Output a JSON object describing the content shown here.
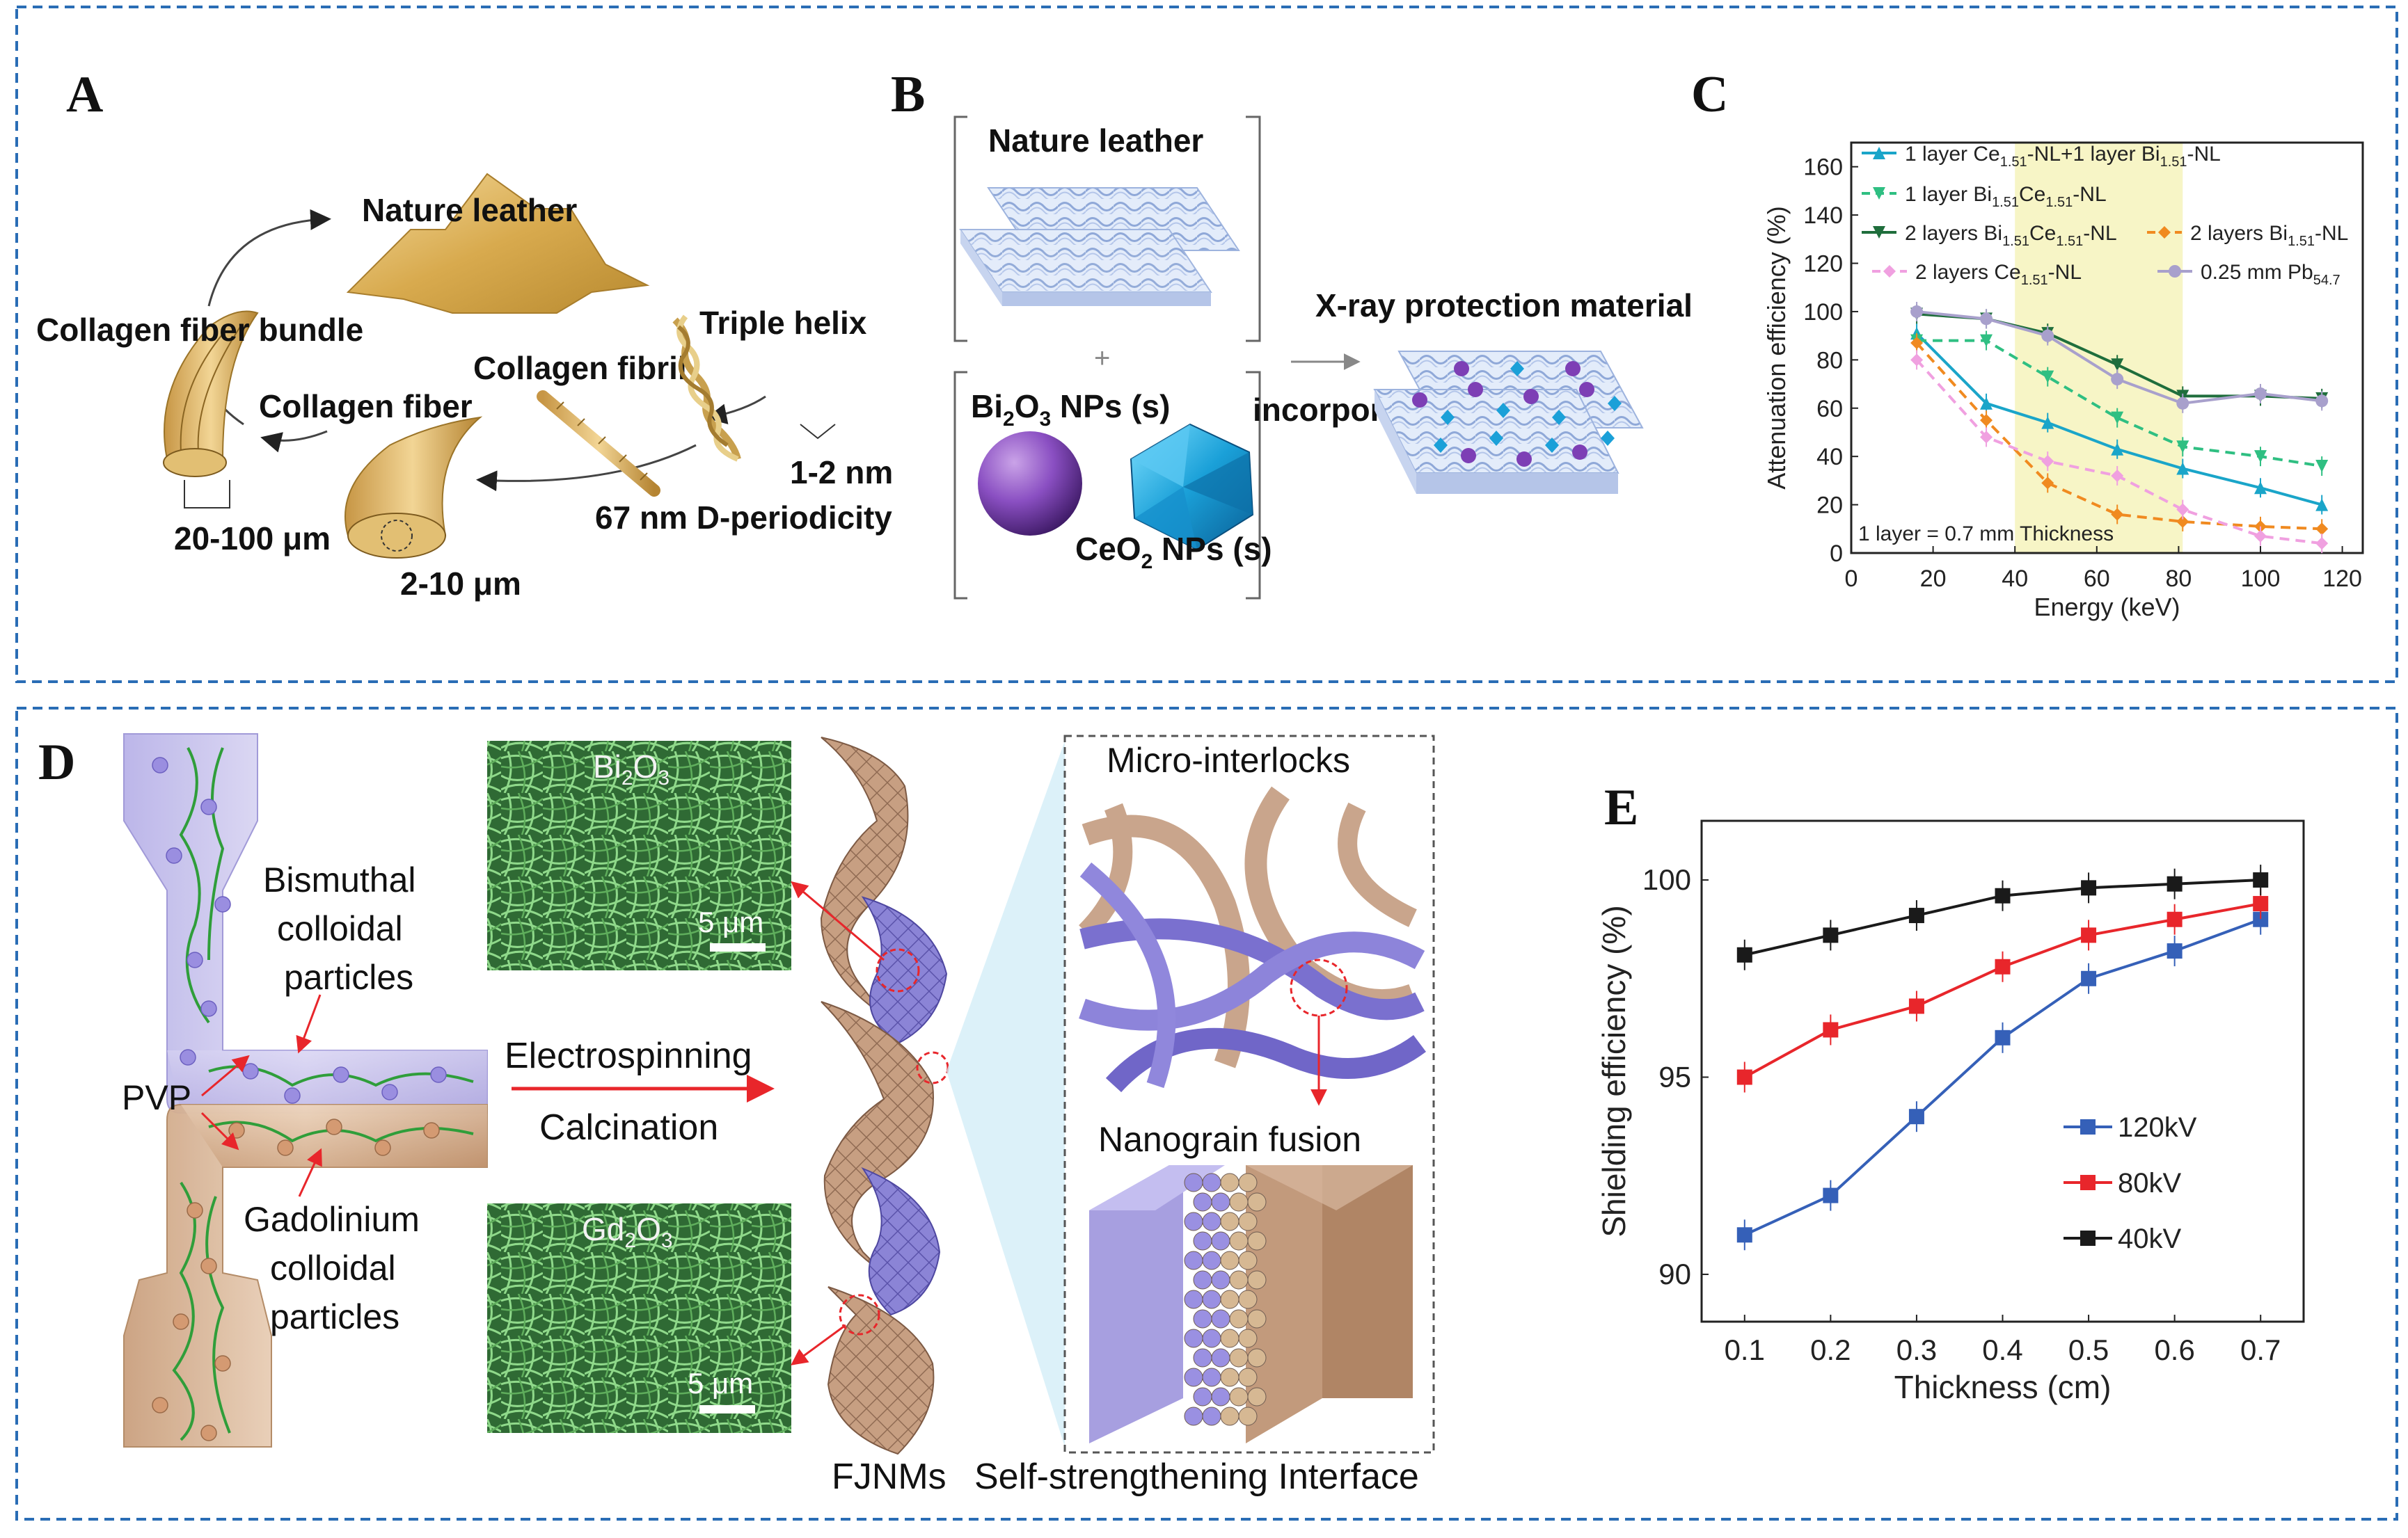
{
  "panels": {
    "A": {
      "letter": "A",
      "labels": {
        "nature_leather": "Nature leather",
        "collagen_fiber_bundle": "Collagen fiber bundle",
        "triple_helix": "Triple helix",
        "collagen_fibril": "Collagen fibril",
        "collagen_fiber": "Collagen fiber",
        "size_helix": "1-2 nm",
        "d_periodicity": "67 nm D-periodicity",
        "size_bundle": "20-100 μm",
        "size_fiber": "2-10 μm"
      }
    },
    "B": {
      "letter": "B",
      "labels": {
        "nature_leather": "Nature leather",
        "plus": "+",
        "bi2o3": "Bi",
        "bi2o3_sub": "2",
        "bi2o3_mid": "O",
        "bi2o3_sub2": "3",
        "bi2o3_tail": " NPs (s)",
        "ceo2": "CeO",
        "ceo2_sub": "2",
        "ceo2_tail": " NPs (s)",
        "incorporation": "incorporation",
        "xray_material": "X-ray protection material"
      }
    },
    "C": {
      "letter": "C",
      "note": "1 layer = 0.7 mm Thickness",
      "legend": [
        {
          "pre": "1 layer Ce",
          "sub": "1.51",
          "mid": "-NL+1 layer Bi",
          "sub2": "1.51",
          "post": "-NL"
        },
        {
          "pre": "1 layer Bi",
          "sub": "1.51",
          "mid": "Ce",
          "sub2": "1.51",
          "post": "-NL"
        },
        {
          "pre": "2 layers Bi",
          "sub": "1.51",
          "mid": "Ce",
          "sub2": "1.51",
          "post": "-NL"
        },
        {
          "pre": "2 layers Bi",
          "sub": "1.51",
          "mid": "",
          "sub2": "",
          "post": "-NL"
        },
        {
          "pre": "2 layers Ce",
          "sub": "1.51",
          "mid": "",
          "sub2": "",
          "post": "-NL"
        },
        {
          "pre": "0.25 mm Pb",
          "sub": "54.7",
          "mid": "",
          "sub2": "",
          "post": ""
        }
      ]
    },
    "D": {
      "letter": "D",
      "labels": {
        "bismuthal": [
          "Bismuthal",
          "colloidal",
          "particles"
        ],
        "gadolinium": [
          "Gadolinium",
          "colloidal",
          "particles"
        ],
        "pvp": "PVP",
        "electrospinning": "Electrospinning",
        "calcination": "Calcination",
        "sem_top": "Bi",
        "sem_top_sub": "2",
        "sem_top_mid": "O",
        "sem_top_sub2": "3",
        "sem_bottom": "Gd",
        "sem_bottom_sub": "2",
        "sem_bottom_mid": "O",
        "sem_bottom_sub2": "3",
        "scale_top": "5 μm",
        "scale_bottom": "5 μm",
        "micro_interlocks": "Micro-interlocks",
        "nanograin_fusion": "Nanograin fusion",
        "fjnms": "FJNMs",
        "interface": "Self-strengthening Interface"
      }
    },
    "E": {
      "letter": "E"
    }
  },
  "chart_data": [
    {
      "panel": "C",
      "type": "line",
      "title": "",
      "xlabel": "Energy (keV)",
      "ylabel": "Attenuation efficiency (%)",
      "xlim": [
        0,
        125
      ],
      "ylim": [
        0,
        170
      ],
      "xticks": [
        0,
        20,
        40,
        60,
        80,
        100,
        120
      ],
      "yticks": [
        0,
        20,
        40,
        60,
        80,
        100,
        120,
        140,
        160
      ],
      "x": [
        16,
        33,
        48,
        65,
        81,
        100,
        115
      ],
      "highlight_x_range": [
        40,
        81
      ],
      "highlight_color": "#f7f5c6",
      "series": [
        {
          "name": "1 layer Ce1.51-NL+1 layer Bi1.51-NL",
          "color": "#1aa5c9",
          "dash": "solid",
          "marker": "triangle-up",
          "values": [
            91,
            62,
            54,
            43,
            35,
            27,
            20
          ]
        },
        {
          "name": "1 layer Bi1.51Ce1.51-NL",
          "color": "#2fbf82",
          "dash": "dashed",
          "marker": "triangle-down",
          "values": [
            88,
            88,
            73,
            56,
            44,
            40,
            36
          ]
        },
        {
          "name": "2 layers Bi1.51Ce1.51-NL",
          "color": "#1f6e3c",
          "dash": "solid",
          "marker": "triangle-down",
          "values": [
            99,
            97,
            91,
            78,
            65,
            65,
            64
          ]
        },
        {
          "name": "2 layers Bi1.51-NL",
          "color": "#f08a20",
          "dash": "dashed",
          "marker": "diamond",
          "values": [
            87,
            55,
            29,
            16,
            13,
            11,
            10
          ]
        },
        {
          "name": "2 layers Ce1.51-NL",
          "color": "#f0a0e0",
          "dash": "dashed",
          "marker": "diamond",
          "values": [
            80,
            48,
            38,
            32,
            18,
            7,
            4
          ]
        },
        {
          "name": "0.25 mm Pb54.7",
          "color": "#a8a0cc",
          "dash": "solid",
          "marker": "circle",
          "values": [
            100,
            97,
            90,
            72,
            62,
            66,
            63
          ]
        }
      ]
    },
    {
      "panel": "E",
      "type": "line",
      "title": "",
      "xlabel": "Thickness (cm)",
      "ylabel": "Shielding efficiency (%)",
      "xlim": [
        0.05,
        0.75
      ],
      "ylim": [
        88.8,
        101.5
      ],
      "xticks": [
        0.1,
        0.2,
        0.3,
        0.4,
        0.5,
        0.6,
        0.7
      ],
      "yticks": [
        90,
        95,
        100
      ],
      "x": [
        0.1,
        0.2,
        0.3,
        0.4,
        0.5,
        0.6,
        0.7
      ],
      "series": [
        {
          "name": "120kV",
          "color": "#3560b8",
          "values": [
            91.0,
            92.0,
            94.0,
            96.0,
            97.5,
            98.2,
            99.0
          ]
        },
        {
          "name": "80kV",
          "color": "#e8262b",
          "values": [
            95.0,
            96.2,
            96.8,
            97.8,
            98.6,
            99.0,
            99.4
          ]
        },
        {
          "name": "40kV",
          "color": "#1a1a1a",
          "values": [
            98.1,
            98.6,
            99.1,
            99.6,
            99.8,
            99.9,
            100.0
          ]
        }
      ]
    }
  ]
}
